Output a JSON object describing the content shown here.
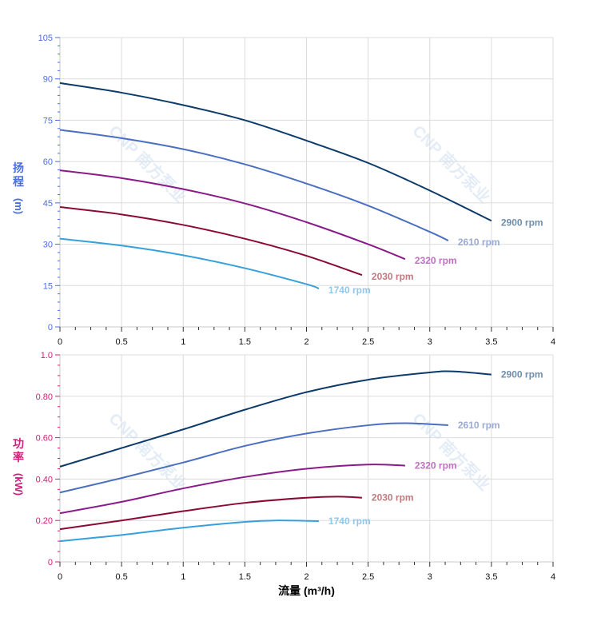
{
  "watermark": "CNP 南方泵业",
  "colors": {
    "head_axis": "#4a6ee0",
    "power_axis": "#d0207a",
    "x_axis": "#000000"
  },
  "chart_data": [
    {
      "type": "line",
      "id": "head",
      "ylabel_chars": [
        "扬",
        "程"
      ],
      "ylabel_unit": "(m)",
      "xlim": [
        0,
        4
      ],
      "ylim": [
        0,
        105
      ],
      "xticks": [
        "0",
        "0.5",
        "1",
        "1.5",
        "2",
        "2.5",
        "3",
        "3.5",
        "4"
      ],
      "yticks": [
        "0",
        "15",
        "30",
        "45",
        "60",
        "75",
        "90",
        "105"
      ],
      "grid": true,
      "series": [
        {
          "name": "2900 rpm",
          "color": "#0b3a6b",
          "label_color": "#6f8fab",
          "x": [
            0,
            0.5,
            1,
            1.5,
            2,
            2.5,
            3,
            3.5
          ],
          "y": [
            88.5,
            85,
            80.5,
            75,
            67.6,
            59.5,
            49.5,
            38.5
          ]
        },
        {
          "name": "2610 rpm",
          "color": "#4a6fc0",
          "label_color": "#9aaad6",
          "x": [
            0,
            0.5,
            1,
            1.5,
            2,
            2.5,
            3,
            3.15
          ],
          "y": [
            71.5,
            68.5,
            64.5,
            59,
            52,
            44,
            34.5,
            31.3
          ]
        },
        {
          "name": "2320 rpm",
          "color": "#8a1a8a",
          "label_color": "#c070c0",
          "x": [
            0,
            0.5,
            1,
            1.5,
            2,
            2.5,
            2.8
          ],
          "y": [
            56.8,
            54,
            50,
            44.8,
            38,
            30,
            24.6
          ]
        },
        {
          "name": "2030 rpm",
          "color": "#8b0a35",
          "label_color": "#c07a80",
          "x": [
            0,
            0.5,
            1,
            1.5,
            2,
            2.45
          ],
          "y": [
            43.5,
            40.8,
            37,
            32,
            25.8,
            18.8
          ]
        },
        {
          "name": "1740 rpm",
          "color": "#35a0dc",
          "label_color": "#8fc8ea",
          "x": [
            0,
            0.5,
            1,
            1.5,
            2,
            2.1
          ],
          "y": [
            32,
            29.5,
            26,
            21.3,
            15.5,
            13.9
          ]
        }
      ]
    },
    {
      "type": "line",
      "id": "power",
      "ylabel_chars": [
        "功",
        "率"
      ],
      "ylabel_unit": "(kW)",
      "xlabel": "流量 (m³/h)",
      "xlim": [
        0,
        4
      ],
      "ylim": [
        0,
        1.0
      ],
      "xticks": [
        "0",
        "0.5",
        "1",
        "1.5",
        "2",
        "2.5",
        "3",
        "3.5",
        "4"
      ],
      "yticks": [
        "0",
        "0.20",
        "0.40",
        "0.60",
        "0.80",
        "1.0"
      ],
      "grid": true,
      "series": [
        {
          "name": "2900 rpm",
          "color": "#0b3a6b",
          "label_color": "#6f8fab",
          "x": [
            0,
            0.5,
            1,
            1.5,
            2,
            2.5,
            3,
            3.2,
            3.5
          ],
          "y": [
            0.46,
            0.55,
            0.64,
            0.735,
            0.82,
            0.88,
            0.915,
            0.92,
            0.905
          ]
        },
        {
          "name": "2610 rpm",
          "color": "#4a6fc0",
          "label_color": "#9aaad6",
          "x": [
            0,
            0.5,
            1,
            1.5,
            2,
            2.5,
            2.8,
            3.15
          ],
          "y": [
            0.335,
            0.405,
            0.48,
            0.56,
            0.62,
            0.66,
            0.67,
            0.66
          ]
        },
        {
          "name": "2320 rpm",
          "color": "#8a1a8a",
          "label_color": "#c070c0",
          "x": [
            0,
            0.5,
            1,
            1.5,
            2,
            2.5,
            2.8
          ],
          "y": [
            0.235,
            0.29,
            0.355,
            0.41,
            0.45,
            0.47,
            0.465
          ]
        },
        {
          "name": "2030 rpm",
          "color": "#8b0a35",
          "label_color": "#c07a80",
          "x": [
            0,
            0.5,
            1,
            1.5,
            2,
            2.25,
            2.45
          ],
          "y": [
            0.158,
            0.2,
            0.245,
            0.285,
            0.31,
            0.315,
            0.31
          ]
        },
        {
          "name": "1740 rpm",
          "color": "#35a0dc",
          "label_color": "#8fc8ea",
          "x": [
            0,
            0.5,
            1,
            1.5,
            1.75,
            2.1
          ],
          "y": [
            0.1,
            0.13,
            0.165,
            0.193,
            0.2,
            0.197
          ]
        }
      ]
    }
  ]
}
